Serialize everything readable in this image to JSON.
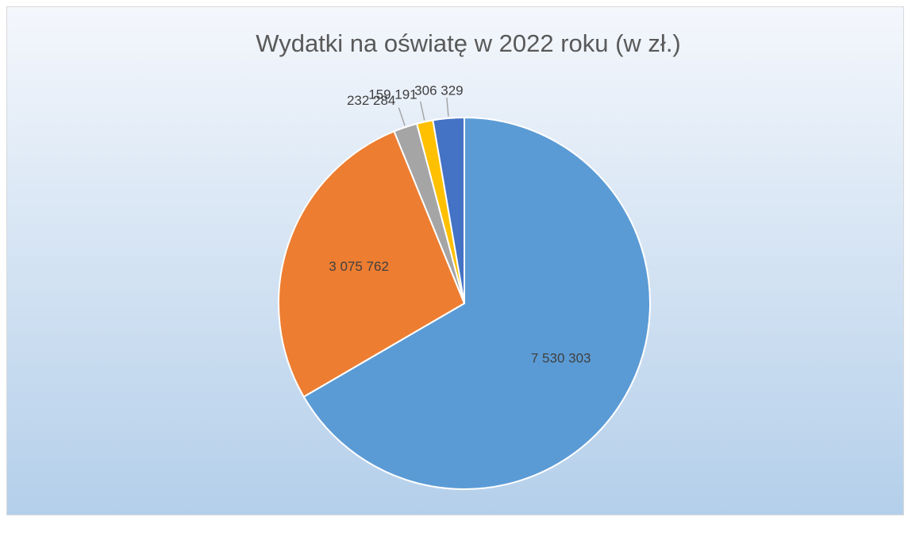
{
  "chart_data": {
    "type": "pie",
    "title": "Wydatki na oświatę w 2022 roku (w  zł.)",
    "values": [
      7530303,
      3075762,
      232284,
      159191,
      306329
    ],
    "value_labels": [
      "7 530 303",
      "3 075 762",
      "232 284",
      "159 191",
      "306 329"
    ],
    "colors": [
      "#5b9bd5",
      "#ed7d31",
      "#a5a5a5",
      "#ffc000",
      "#4472c4"
    ]
  }
}
